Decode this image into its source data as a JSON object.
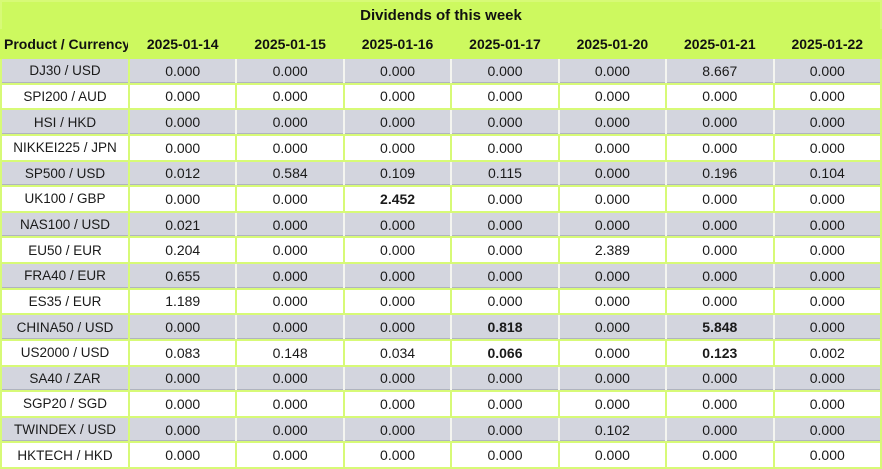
{
  "title": "Dividends of this week",
  "colors": {
    "header_green": "#cdf95f",
    "grid_green": "#d7fa77",
    "row_gray": "#d3d5de",
    "row_white": "#ffffff",
    "text": "#1a1a1a"
  },
  "chart_data": {
    "type": "table",
    "title": "Dividends of this week",
    "columns": [
      "Product / Currency",
      "2025-01-14",
      "2025-01-15",
      "2025-01-16",
      "2025-01-17",
      "2025-01-20",
      "2025-01-21",
      "2025-01-22"
    ],
    "rows": [
      {
        "product": "DJ30 / USD",
        "values": [
          "0.000",
          "0.000",
          "0.000",
          "0.000",
          "0.000",
          "8.667",
          "0.000"
        ],
        "bold_indices": []
      },
      {
        "product": "SPI200 / AUD",
        "values": [
          "0.000",
          "0.000",
          "0.000",
          "0.000",
          "0.000",
          "0.000",
          "0.000"
        ],
        "bold_indices": []
      },
      {
        "product": "HSI / HKD",
        "values": [
          "0.000",
          "0.000",
          "0.000",
          "0.000",
          "0.000",
          "0.000",
          "0.000"
        ],
        "bold_indices": []
      },
      {
        "product": "NIKKEI225 / JPN",
        "values": [
          "0.000",
          "0.000",
          "0.000",
          "0.000",
          "0.000",
          "0.000",
          "0.000"
        ],
        "bold_indices": []
      },
      {
        "product": "SP500 / USD",
        "values": [
          "0.012",
          "0.584",
          "0.109",
          "0.115",
          "0.000",
          "0.196",
          "0.104"
        ],
        "bold_indices": []
      },
      {
        "product": "UK100 / GBP",
        "values": [
          "0.000",
          "0.000",
          "2.452",
          "0.000",
          "0.000",
          "0.000",
          "0.000"
        ],
        "bold_indices": [
          2
        ]
      },
      {
        "product": "NAS100 / USD",
        "values": [
          "0.021",
          "0.000",
          "0.000",
          "0.000",
          "0.000",
          "0.000",
          "0.000"
        ],
        "bold_indices": []
      },
      {
        "product": "EU50 / EUR",
        "values": [
          "0.204",
          "0.000",
          "0.000",
          "0.000",
          "2.389",
          "0.000",
          "0.000"
        ],
        "bold_indices": []
      },
      {
        "product": "FRA40 / EUR",
        "values": [
          "0.655",
          "0.000",
          "0.000",
          "0.000",
          "0.000",
          "0.000",
          "0.000"
        ],
        "bold_indices": []
      },
      {
        "product": "ES35 / EUR",
        "values": [
          "1.189",
          "0.000",
          "0.000",
          "0.000",
          "0.000",
          "0.000",
          "0.000"
        ],
        "bold_indices": []
      },
      {
        "product": "CHINA50 / USD",
        "values": [
          "0.000",
          "0.000",
          "0.000",
          "0.818",
          "0.000",
          "5.848",
          "0.000"
        ],
        "bold_indices": [
          3,
          5
        ]
      },
      {
        "product": "US2000 / USD",
        "values": [
          "0.083",
          "0.148",
          "0.034",
          "0.066",
          "0.000",
          "0.123",
          "0.002"
        ],
        "bold_indices": [
          3,
          5
        ]
      },
      {
        "product": "SA40 / ZAR",
        "values": [
          "0.000",
          "0.000",
          "0.000",
          "0.000",
          "0.000",
          "0.000",
          "0.000"
        ],
        "bold_indices": []
      },
      {
        "product": "SGP20 / SGD",
        "values": [
          "0.000",
          "0.000",
          "0.000",
          "0.000",
          "0.000",
          "0.000",
          "0.000"
        ],
        "bold_indices": []
      },
      {
        "product": "TWINDEX / USD",
        "values": [
          "0.000",
          "0.000",
          "0.000",
          "0.000",
          "0.102",
          "0.000",
          "0.000"
        ],
        "bold_indices": []
      },
      {
        "product": "HKTECH / HKD",
        "values": [
          "0.000",
          "0.000",
          "0.000",
          "0.000",
          "0.000",
          "0.000",
          "0.000"
        ],
        "bold_indices": []
      }
    ]
  }
}
